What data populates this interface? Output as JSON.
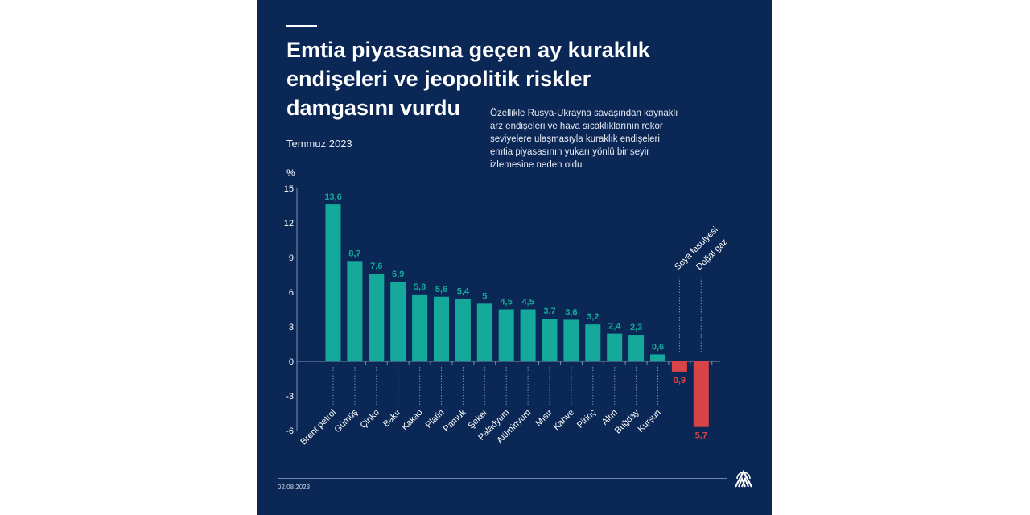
{
  "header": {
    "title_lines": [
      "Emtia piyasasına geçen ay kuraklık",
      "endişeleri ve jeopolitik riskler",
      "damgasını vurdu"
    ],
    "date": "Temmuz 2023",
    "description": "Özellikle Rusya-Ukrayna savaşından kaynaklı arz endişeleri ve hava sıcaklıklarının rekor seviyelere ulaşmasıyla kuraklık endişeleri emtia piyasasının yukarı yönlü bir seyir izlemesine neden oldu"
  },
  "chart_data": {
    "type": "bar",
    "ylabel": "%",
    "ylim": [
      -6,
      15
    ],
    "yticks": [
      "15",
      "12",
      "9",
      "6",
      "3",
      "0",
      "-3",
      "-6"
    ],
    "ytick_values": [
      15,
      12,
      9,
      6,
      3,
      0,
      -3,
      -6
    ],
    "grid": false,
    "categories": [
      "Brent petrol",
      "Gümüş",
      "Çinko",
      "Bakır",
      "Kakao",
      "Platin",
      "Pamuk",
      "Şeker",
      "Paladyum",
      "Alüminyum",
      "Mısır",
      "Kahve",
      "Pirinç",
      "Altın",
      "Buğday",
      "Kurşun",
      "Soya fasulyesi",
      "Doğal gaz"
    ],
    "values": [
      13.6,
      8.7,
      7.6,
      6.9,
      5.8,
      5.6,
      5.4,
      5.0,
      4.5,
      4.5,
      3.7,
      3.6,
      3.2,
      2.4,
      2.3,
      0.6,
      -0.9,
      -5.7
    ],
    "data_labels": [
      "13,6",
      "8,7",
      "7,6",
      "6,9",
      "5,8",
      "5,6",
      "5,4",
      "5",
      "4,5",
      "4,5",
      "3,7",
      "3,6",
      "3,2",
      "2,4",
      "2,3",
      "0,6",
      "0,9",
      "5,7"
    ],
    "colors": {
      "positive": "#14a99a",
      "negative": "#d94446"
    }
  },
  "footer": {
    "date": "02.08.2023",
    "logo_text": "AA"
  },
  "colors": {
    "background": "#0b2755",
    "text": "#ffffff"
  }
}
